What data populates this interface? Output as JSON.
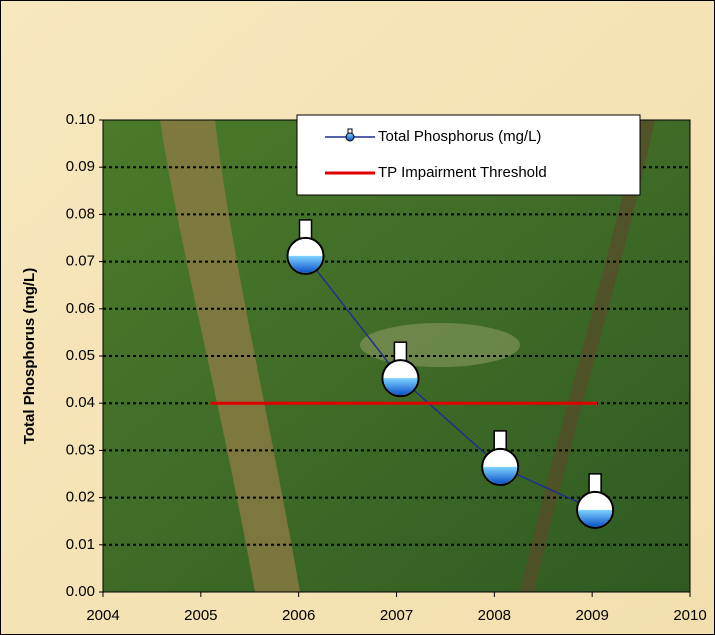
{
  "chart_data": {
    "type": "line",
    "y_label": "Total Phosphorus (mg/L)",
    "xlim": [
      2004,
      2010
    ],
    "xticks": [
      2004,
      2005,
      2006,
      2007,
      2008,
      2009,
      2010
    ],
    "ylim": [
      0,
      0.1
    ],
    "yticks": [
      {
        "value": 0,
        "label": "0.00"
      },
      {
        "value": 0.01,
        "label": "0.01"
      },
      {
        "value": 0.02,
        "label": "0.02"
      },
      {
        "value": 0.03,
        "label": "0.03"
      },
      {
        "value": 0.04,
        "label": "0.04"
      },
      {
        "value": 0.05,
        "label": "0.05"
      },
      {
        "value": 0.06,
        "label": "0.06"
      },
      {
        "value": 0.07,
        "label": "0.07"
      },
      {
        "value": 0.08,
        "label": "0.08"
      },
      {
        "value": 0.09,
        "label": "0.09"
      },
      {
        "value": 0.1,
        "label": "0.10"
      }
    ],
    "grid": true,
    "series": [
      {
        "name": "Total Phosphorus (mg/L)",
        "color": "#1f2f8f",
        "marker": "flask",
        "x": [
          2006.07,
          2007.04,
          2008.06,
          2009.03
        ],
        "values": [
          0.0712,
          0.0453,
          0.0265,
          0.0174
        ]
      },
      {
        "name": "TP Impairment Threshold",
        "color": "#e00000",
        "marker": "none",
        "x": [
          2005.1,
          2009.05
        ],
        "values": [
          0.04,
          0.04
        ]
      }
    ]
  }
}
